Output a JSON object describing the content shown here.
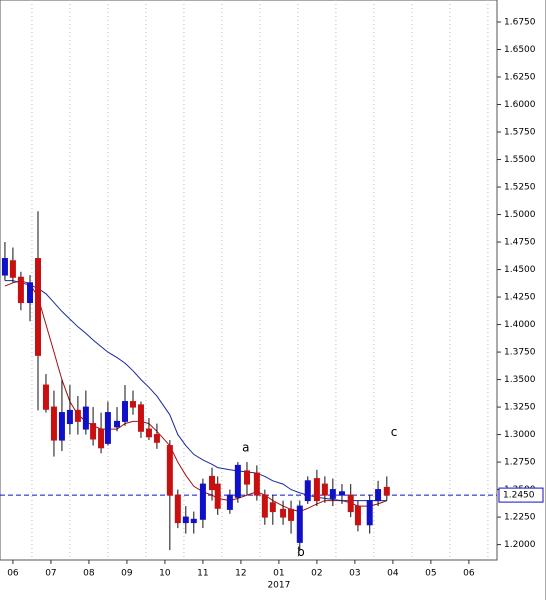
{
  "chart_data": {
    "type": "candlestick",
    "x": [
      -0.21,
      0,
      0.21,
      0.45,
      0.66,
      0.87,
      1.08,
      1.29,
      1.5,
      1.71,
      1.92,
      2.11,
      2.32,
      2.5,
      2.74,
      2.95,
      3.16,
      3.37,
      3.58,
      3.79,
      4.13,
      4.34,
      4.55,
      4.76,
      5.0,
      5.24,
      5.39,
      5.71,
      5.92,
      6.16,
      6.42,
      6.63,
      6.84,
      7.11,
      7.32,
      7.55,
      7.76,
      8.0,
      8.21,
      8.42,
      8.66,
      8.89,
      9.08,
      9.39,
      9.61,
      9.84
    ],
    "open": [
      1.445,
      1.458,
      1.443,
      1.42,
      1.46,
      1.345,
      1.325,
      1.295,
      1.31,
      1.322,
      1.305,
      1.31,
      1.305,
      1.292,
      1.307,
      1.312,
      1.33,
      1.327,
      1.305,
      1.3,
      1.29,
      1.245,
      1.22,
      1.22,
      1.223,
      1.262,
      1.255,
      1.232,
      1.243,
      1.267,
      1.265,
      1.245,
      1.238,
      1.232,
      1.232,
      1.202,
      1.24,
      1.26,
      1.255,
      1.242,
      1.245,
      1.245,
      1.235,
      1.218,
      1.24,
      1.252
    ],
    "high": [
      1.475,
      1.47,
      1.448,
      1.445,
      1.503,
      1.355,
      1.34,
      1.35,
      1.345,
      1.335,
      1.34,
      1.325,
      1.32,
      1.33,
      1.325,
      1.345,
      1.34,
      1.33,
      1.315,
      1.31,
      1.295,
      1.25,
      1.235,
      1.23,
      1.26,
      1.27,
      1.262,
      1.25,
      1.275,
      1.275,
      1.272,
      1.25,
      1.245,
      1.24,
      1.24,
      1.24,
      1.262,
      1.268,
      1.262,
      1.26,
      1.255,
      1.255,
      1.24,
      1.245,
      1.258,
      1.262
    ],
    "low": [
      1.44,
      1.438,
      1.413,
      1.403,
      1.322,
      1.32,
      1.28,
      1.285,
      1.3,
      1.3,
      1.3,
      1.29,
      1.283,
      1.29,
      1.303,
      1.308,
      1.318,
      1.297,
      1.295,
      1.287,
      1.195,
      1.215,
      1.21,
      1.21,
      1.215,
      1.24,
      1.227,
      1.228,
      1.238,
      1.245,
      1.24,
      1.218,
      1.218,
      1.218,
      1.21,
      1.195,
      1.237,
      1.235,
      1.238,
      1.235,
      1.237,
      1.225,
      1.212,
      1.21,
      1.235,
      1.24
    ],
    "close": [
      1.46,
      1.443,
      1.42,
      1.438,
      1.372,
      1.323,
      1.295,
      1.32,
      1.322,
      1.312,
      1.325,
      1.296,
      1.288,
      1.32,
      1.312,
      1.33,
      1.325,
      1.303,
      1.298,
      1.293,
      1.245,
      1.22,
      1.225,
      1.223,
      1.255,
      1.25,
      1.233,
      1.245,
      1.272,
      1.255,
      1.245,
      1.225,
      1.23,
      1.225,
      1.222,
      1.235,
      1.258,
      1.24,
      1.245,
      1.25,
      1.248,
      1.23,
      1.218,
      1.24,
      1.25,
      1.245
    ],
    "up_color": "#1010c8",
    "down_color": "#c81010",
    "lines": [
      {
        "color": "#a01010",
        "values": [
          1.435,
          1.438,
          1.44,
          1.437,
          1.425,
          1.4,
          1.375,
          1.35,
          1.33,
          1.318,
          1.312,
          1.308,
          1.305,
          1.305,
          1.305,
          1.31,
          1.312,
          1.312,
          1.31,
          1.303,
          1.29,
          1.275,
          1.263,
          1.253,
          1.248,
          1.245,
          1.242,
          1.24,
          1.242,
          1.245,
          1.248,
          1.245,
          1.24,
          1.235,
          1.232,
          1.23,
          1.233,
          1.237,
          1.24,
          1.24,
          1.24,
          1.238,
          1.235,
          1.235,
          1.237,
          1.24
        ]
      },
      {
        "color": "#1a2a9a",
        "values": [
          1.44,
          1.44,
          1.438,
          1.436,
          1.433,
          1.428,
          1.42,
          1.412,
          1.405,
          1.398,
          1.392,
          1.386,
          1.38,
          1.375,
          1.37,
          1.365,
          1.358,
          1.35,
          1.343,
          1.335,
          1.318,
          1.3,
          1.29,
          1.282,
          1.277,
          1.273,
          1.27,
          1.268,
          1.267,
          1.266,
          1.265,
          1.262,
          1.258,
          1.255,
          1.25,
          1.247,
          1.245,
          1.243,
          1.242,
          1.241,
          1.24,
          1.24,
          1.24,
          1.24,
          1.24,
          1.24
        ]
      }
    ],
    "xlim": [
      -0.34,
      12.74
    ],
    "xticks": [
      {
        "value": 0,
        "label": "06"
      },
      {
        "value": 1,
        "label": "07"
      },
      {
        "value": 2,
        "label": "08"
      },
      {
        "value": 3,
        "label": "09"
      },
      {
        "value": 4,
        "label": "10"
      },
      {
        "value": 5,
        "label": "11"
      },
      {
        "value": 6,
        "label": "12"
      },
      {
        "value": 7,
        "label": "01"
      },
      {
        "value": 8,
        "label": "02"
      },
      {
        "value": 9,
        "label": "03"
      },
      {
        "value": 10,
        "label": "04"
      },
      {
        "value": 11,
        "label": "05"
      },
      {
        "value": 12,
        "label": "06"
      }
    ],
    "year_label": {
      "text": "2017",
      "x": 7
    },
    "ylim": [
      1.186,
      1.695
    ],
    "yticks": [
      {
        "value": 1.2,
        "label": "1.2000"
      },
      {
        "value": 1.225,
        "label": "1.2250"
      },
      {
        "value": 1.25,
        "label": "1.2500"
      },
      {
        "value": 1.275,
        "label": "1.2750"
      },
      {
        "value": 1.3,
        "label": "1.3000"
      },
      {
        "value": 1.325,
        "label": "1.3250"
      },
      {
        "value": 1.35,
        "label": "1.3500"
      },
      {
        "value": 1.375,
        "label": "1.3750"
      },
      {
        "value": 1.4,
        "label": "1.4000"
      },
      {
        "value": 1.425,
        "label": "1.4250"
      },
      {
        "value": 1.45,
        "label": "1.4500"
      },
      {
        "value": 1.475,
        "label": "1.4750"
      },
      {
        "value": 1.5,
        "label": "1.5000"
      },
      {
        "value": 1.525,
        "label": "1.5250"
      },
      {
        "value": 1.55,
        "label": "1.5500"
      },
      {
        "value": 1.575,
        "label": "1.5750"
      },
      {
        "value": 1.6,
        "label": "1.6000"
      },
      {
        "value": 1.625,
        "label": "1.6250"
      },
      {
        "value": 1.65,
        "label": "1.6500"
      },
      {
        "value": 1.675,
        "label": "1.6750"
      }
    ],
    "current_price": {
      "value": 1.245,
      "label": "1.2450",
      "color": "#1010c8"
    },
    "annotations": [
      {
        "text": "a",
        "x": 6.13,
        "y": 1.288,
        "color": "#d01010"
      },
      {
        "text": "b",
        "x": 7.58,
        "y": 1.193,
        "color": "#d01010"
      },
      {
        "text": "c",
        "x": 10.03,
        "y": 1.302,
        "color": "#d01010"
      }
    ],
    "grid": true
  }
}
